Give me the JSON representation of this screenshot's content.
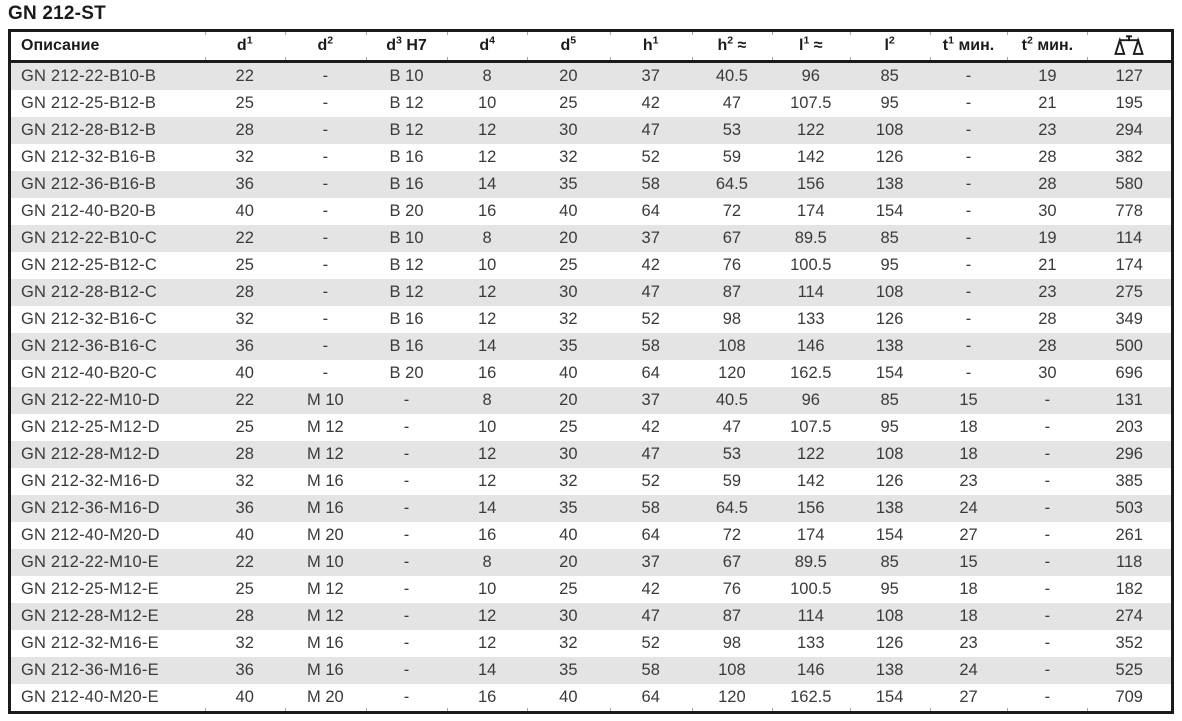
{
  "title": "GN 212-ST",
  "colors": {
    "stripe": "#e4e4e4",
    "border": "#1b1b1b",
    "text": "#3a3a3a",
    "header_text": "#1b1b1b"
  },
  "table": {
    "columns": [
      {
        "key": "description",
        "label": "Описание"
      },
      {
        "key": "d1",
        "base": "d",
        "index": "1"
      },
      {
        "key": "d2",
        "base": "d",
        "index": "2"
      },
      {
        "key": "d3",
        "base": "d",
        "index": "3",
        "suffix": "H7"
      },
      {
        "key": "d4",
        "base": "d",
        "index": "4"
      },
      {
        "key": "d5",
        "base": "d",
        "index": "5"
      },
      {
        "key": "h1",
        "base": "h",
        "index": "1"
      },
      {
        "key": "h2",
        "base": "h",
        "index": "2",
        "suffix": "≈"
      },
      {
        "key": "l1",
        "base": "l",
        "index": "1",
        "suffix": "≈"
      },
      {
        "key": "l2",
        "base": "l",
        "index": "2"
      },
      {
        "key": "t1",
        "base": "t",
        "index": "1",
        "suffix": "мин."
      },
      {
        "key": "t2",
        "base": "t",
        "index": "2",
        "suffix": "мин."
      },
      {
        "key": "weight",
        "icon": "scale-icon"
      }
    ],
    "rows": [
      [
        "GN 212-22-B10-B",
        "22",
        "-",
        "B 10",
        "8",
        "20",
        "37",
        "40.5",
        "96",
        "85",
        "-",
        "19",
        "127"
      ],
      [
        "GN 212-25-B12-B",
        "25",
        "-",
        "B 12",
        "10",
        "25",
        "42",
        "47",
        "107.5",
        "95",
        "-",
        "21",
        "195"
      ],
      [
        "GN 212-28-B12-B",
        "28",
        "-",
        "B 12",
        "12",
        "30",
        "47",
        "53",
        "122",
        "108",
        "-",
        "23",
        "294"
      ],
      [
        "GN 212-32-B16-B",
        "32",
        "-",
        "B 16",
        "12",
        "32",
        "52",
        "59",
        "142",
        "126",
        "-",
        "28",
        "382"
      ],
      [
        "GN 212-36-B16-B",
        "36",
        "-",
        "B 16",
        "14",
        "35",
        "58",
        "64.5",
        "156",
        "138",
        "-",
        "28",
        "580"
      ],
      [
        "GN 212-40-B20-B",
        "40",
        "-",
        "B 20",
        "16",
        "40",
        "64",
        "72",
        "174",
        "154",
        "-",
        "30",
        "778"
      ],
      [
        "GN 212-22-B10-C",
        "22",
        "-",
        "B 10",
        "8",
        "20",
        "37",
        "67",
        "89.5",
        "85",
        "-",
        "19",
        "114"
      ],
      [
        "GN 212-25-B12-C",
        "25",
        "-",
        "B 12",
        "10",
        "25",
        "42",
        "76",
        "100.5",
        "95",
        "-",
        "21",
        "174"
      ],
      [
        "GN 212-28-B12-C",
        "28",
        "-",
        "B 12",
        "12",
        "30",
        "47",
        "87",
        "114",
        "108",
        "-",
        "23",
        "275"
      ],
      [
        "GN 212-32-B16-C",
        "32",
        "-",
        "B 16",
        "12",
        "32",
        "52",
        "98",
        "133",
        "126",
        "-",
        "28",
        "349"
      ],
      [
        "GN 212-36-B16-C",
        "36",
        "-",
        "B 16",
        "14",
        "35",
        "58",
        "108",
        "146",
        "138",
        "-",
        "28",
        "500"
      ],
      [
        "GN 212-40-B20-C",
        "40",
        "-",
        "B 20",
        "16",
        "40",
        "64",
        "120",
        "162.5",
        "154",
        "-",
        "30",
        "696"
      ],
      [
        "GN 212-22-M10-D",
        "22",
        "M 10",
        "-",
        "8",
        "20",
        "37",
        "40.5",
        "96",
        "85",
        "15",
        "-",
        "131"
      ],
      [
        "GN 212-25-M12-D",
        "25",
        "M 12",
        "-",
        "10",
        "25",
        "42",
        "47",
        "107.5",
        "95",
        "18",
        "-",
        "203"
      ],
      [
        "GN 212-28-M12-D",
        "28",
        "M 12",
        "-",
        "12",
        "30",
        "47",
        "53",
        "122",
        "108",
        "18",
        "-",
        "296"
      ],
      [
        "GN 212-32-M16-D",
        "32",
        "M 16",
        "-",
        "12",
        "32",
        "52",
        "59",
        "142",
        "126",
        "23",
        "-",
        "385"
      ],
      [
        "GN 212-36-M16-D",
        "36",
        "M 16",
        "-",
        "14",
        "35",
        "58",
        "64.5",
        "156",
        "138",
        "24",
        "-",
        "503"
      ],
      [
        "GN 212-40-M20-D",
        "40",
        "M 20",
        "-",
        "16",
        "40",
        "64",
        "72",
        "174",
        "154",
        "27",
        "-",
        "261"
      ],
      [
        "GN 212-22-M10-E",
        "22",
        "M 10",
        "-",
        "8",
        "20",
        "37",
        "67",
        "89.5",
        "85",
        "15",
        "-",
        "118"
      ],
      [
        "GN 212-25-M12-E",
        "25",
        "M 12",
        "-",
        "10",
        "25",
        "42",
        "76",
        "100.5",
        "95",
        "18",
        "-",
        "182"
      ],
      [
        "GN 212-28-M12-E",
        "28",
        "M 12",
        "-",
        "12",
        "30",
        "47",
        "87",
        "114",
        "108",
        "18",
        "-",
        "274"
      ],
      [
        "GN 212-32-M16-E",
        "32",
        "M 16",
        "-",
        "12",
        "32",
        "52",
        "98",
        "133",
        "126",
        "23",
        "-",
        "352"
      ],
      [
        "GN 212-36-M16-E",
        "36",
        "M 16",
        "-",
        "14",
        "35",
        "58",
        "108",
        "146",
        "138",
        "24",
        "-",
        "525"
      ],
      [
        "GN 212-40-M20-E",
        "40",
        "M 20",
        "-",
        "16",
        "40",
        "64",
        "120",
        "162.5",
        "154",
        "27",
        "-",
        "709"
      ]
    ]
  }
}
